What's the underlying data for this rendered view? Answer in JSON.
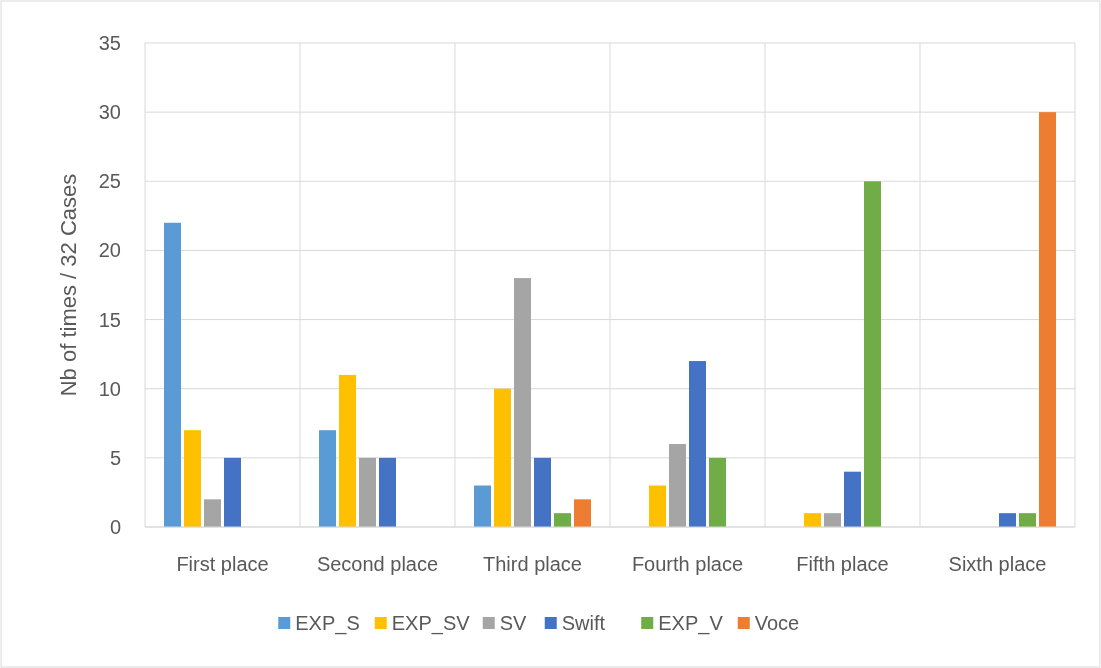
{
  "chart_data": {
    "type": "bar",
    "ylabel": "Nb of times / 32 Cases",
    "categories": [
      "First place",
      "Second place",
      "Third place",
      "Fourth place",
      "Fifth place",
      "Sixth place"
    ],
    "series": [
      {
        "name": "EXP_S",
        "color": "#5b9bd5",
        "values": [
          22,
          7,
          3,
          0,
          0,
          0
        ]
      },
      {
        "name": "EXP_SV",
        "color": "#ffc000",
        "values": [
          7,
          11,
          10,
          3,
          1,
          0
        ]
      },
      {
        "name": "SV",
        "color": "#a5a5a5",
        "values": [
          2,
          5,
          18,
          6,
          1,
          0
        ]
      },
      {
        "name": "Swift",
        "color": "#4472c4",
        "values": [
          5,
          5,
          5,
          12,
          4,
          1
        ]
      },
      {
        "name": "EXP_V",
        "color": "#70ad47",
        "values": [
          0,
          0,
          1,
          5,
          25,
          1
        ]
      },
      {
        "name": "Voce",
        "color": "#ed7d31",
        "values": [
          0,
          0,
          2,
          0,
          0,
          30
        ]
      }
    ],
    "ylim": [
      0,
      35
    ],
    "yticks": [
      0,
      5,
      10,
      15,
      20,
      25,
      30,
      35
    ],
    "grid": true,
    "legend": "bottom"
  }
}
